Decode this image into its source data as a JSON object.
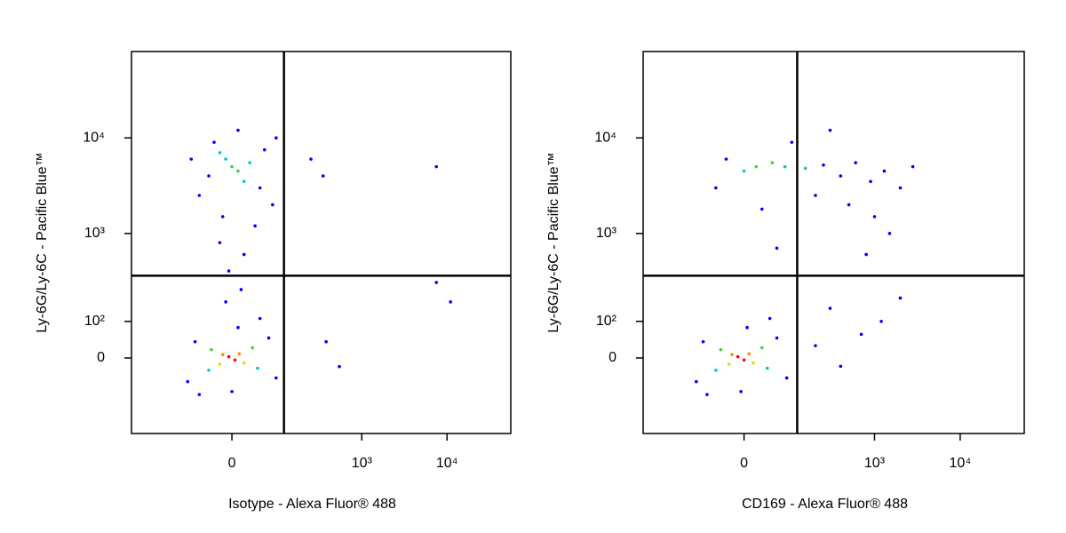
{
  "chart_data": [
    {
      "type": "scatter",
      "xlabel": "Isotype - Alexa Fluor® 488",
      "ylabel": "Ly-6G/Ly-6C - Pacific Blue™",
      "xlim": [
        -450,
        56000
      ],
      "ylim": [
        -300,
        80000
      ],
      "xticks": [
        0,
        {
          "value": 1000,
          "label": "10³"
        },
        {
          "value": 10000,
          "label": "10⁴"
        }
      ],
      "yticks": [
        0,
        {
          "value": 100,
          "label": "10²"
        },
        {
          "value": 1000,
          "label": "10³"
        },
        {
          "value": 10000,
          "label": "10⁴"
        }
      ],
      "gate_x": 115,
      "gate_y": 355,
      "x": [
        -5,
        5,
        -15,
        12,
        -20,
        20,
        -35,
        35,
        -40,
        45,
        -70,
        70,
        -90,
        90,
        0,
        10,
        -60,
        50,
        -10,
        15,
        -5,
        20,
        -20,
        0,
        10,
        -10,
        20,
        -20,
        30,
        -40,
        50,
        -30,
        60,
        -60,
        80,
        -80,
        10,
        -15,
        40,
        90,
        250,
        350,
        7500,
        7500,
        11000,
        545,
        380
      ],
      "y": [
        3,
        -5,
        8,
        10,
        -15,
        -12,
        20,
        25,
        -30,
        -25,
        40,
        50,
        -60,
        -50,
        -90,
        80,
        -100,
        110,
        180,
        250,
        400,
        600,
        800,
        5000,
        4500,
        6000,
        3500,
        7000,
        5500,
        4000,
        3000,
        9000,
        7500,
        2500,
        2000,
        6000,
        12000,
        1500,
        1200,
        10000,
        6000,
        4000,
        5000,
        300,
        180,
        -21,
        40
      ],
      "colors": [
        "#ff0000",
        "#ff0000",
        "#ff8c00",
        "#ff8c00",
        "#e0e000",
        "#e0e000",
        "#40d040",
        "#40d040",
        "#00c8c8",
        "#00c8c8",
        "#0000ff",
        "#0000ff",
        "#0000ff",
        "#0000ff",
        "#0000ff",
        "#0000ff",
        "#0000ff",
        "#0000ff",
        "#0000ff",
        "#0000ff",
        "#0000ff",
        "#0000ff",
        "#0000ff",
        "#40d040",
        "#40d040",
        "#00c8c8",
        "#00c8c8",
        "#00c8c8",
        "#00c8c8",
        "#0000ff",
        "#0000ff",
        "#0000ff",
        "#0000ff",
        "#0000ff",
        "#0000ff",
        "#0000ff",
        "#0000ff",
        "#0000ff",
        "#0000ff",
        "#0000ff",
        "#0000ff",
        "#0000ff",
        "#0000ff",
        "#0000ff",
        "#0000ff",
        "#0000ff",
        "#0000ff"
      ]
    },
    {
      "type": "scatter",
      "xlabel": "CD169 - Alexa Fluor® 488",
      "ylabel": "Ly-6G/Ly-6C - Pacific Blue™",
      "xlim": [
        -450,
        56000
      ],
      "ylim": [
        -300,
        80000
      ],
      "xticks": [
        0,
        {
          "value": 1000,
          "label": "10³"
        },
        {
          "value": 10000,
          "label": "10⁴"
        }
      ],
      "yticks": [
        0,
        {
          "value": 100,
          "label": "10²"
        },
        {
          "value": 1000,
          "label": "10³"
        },
        {
          "value": 10000,
          "label": "10⁴"
        }
      ],
      "gate_x": 118,
      "gate_y": 355,
      "x": [
        -10,
        0,
        -20,
        8,
        -25,
        15,
        -40,
        30,
        -50,
        40,
        -80,
        60,
        -100,
        85,
        -5,
        5,
        -70,
        45,
        200,
        400,
        700,
        1200,
        300,
        2000,
        20,
        50,
        0,
        80,
        150,
        -30,
        250,
        400,
        600,
        900,
        1300,
        2000,
        2800,
        500,
        1000,
        200,
        30,
        1500,
        100,
        300,
        60,
        800,
        -50
      ],
      "y": [
        3,
        -5,
        8,
        10,
        -15,
        -12,
        20,
        25,
        -30,
        -25,
        40,
        50,
        -60,
        -50,
        -90,
        80,
        -100,
        110,
        30,
        -20,
        60,
        100,
        150,
        200,
        5000,
        5500,
        4500,
        5000,
        4800,
        6000,
        5200,
        4000,
        5500,
        3500,
        4500,
        3000,
        5000,
        2000,
        1500,
        2500,
        1800,
        1000,
        9000,
        12000,
        700,
        600,
        3000
      ],
      "colors": [
        "#ff0000",
        "#ff0000",
        "#ff8c00",
        "#ff8c00",
        "#e0e000",
        "#e0e000",
        "#40d040",
        "#40d040",
        "#00c8c8",
        "#00c8c8",
        "#0000ff",
        "#0000ff",
        "#0000ff",
        "#0000ff",
        "#0000ff",
        "#0000ff",
        "#0000ff",
        "#0000ff",
        "#0000ff",
        "#0000ff",
        "#0000ff",
        "#0000ff",
        "#0000ff",
        "#0000ff",
        "#40d040",
        "#40d040",
        "#00c8c8",
        "#00c8c8",
        "#00c8c8",
        "#0000ff",
        "#0000ff",
        "#0000ff",
        "#0000ff",
        "#0000ff",
        "#0000ff",
        "#0000ff",
        "#0000ff",
        "#0000ff",
        "#0000ff",
        "#0000ff",
        "#0000ff",
        "#0000ff",
        "#0000ff",
        "#0000ff",
        "#0000ff",
        "#0000ff",
        "#0000ff"
      ]
    }
  ]
}
